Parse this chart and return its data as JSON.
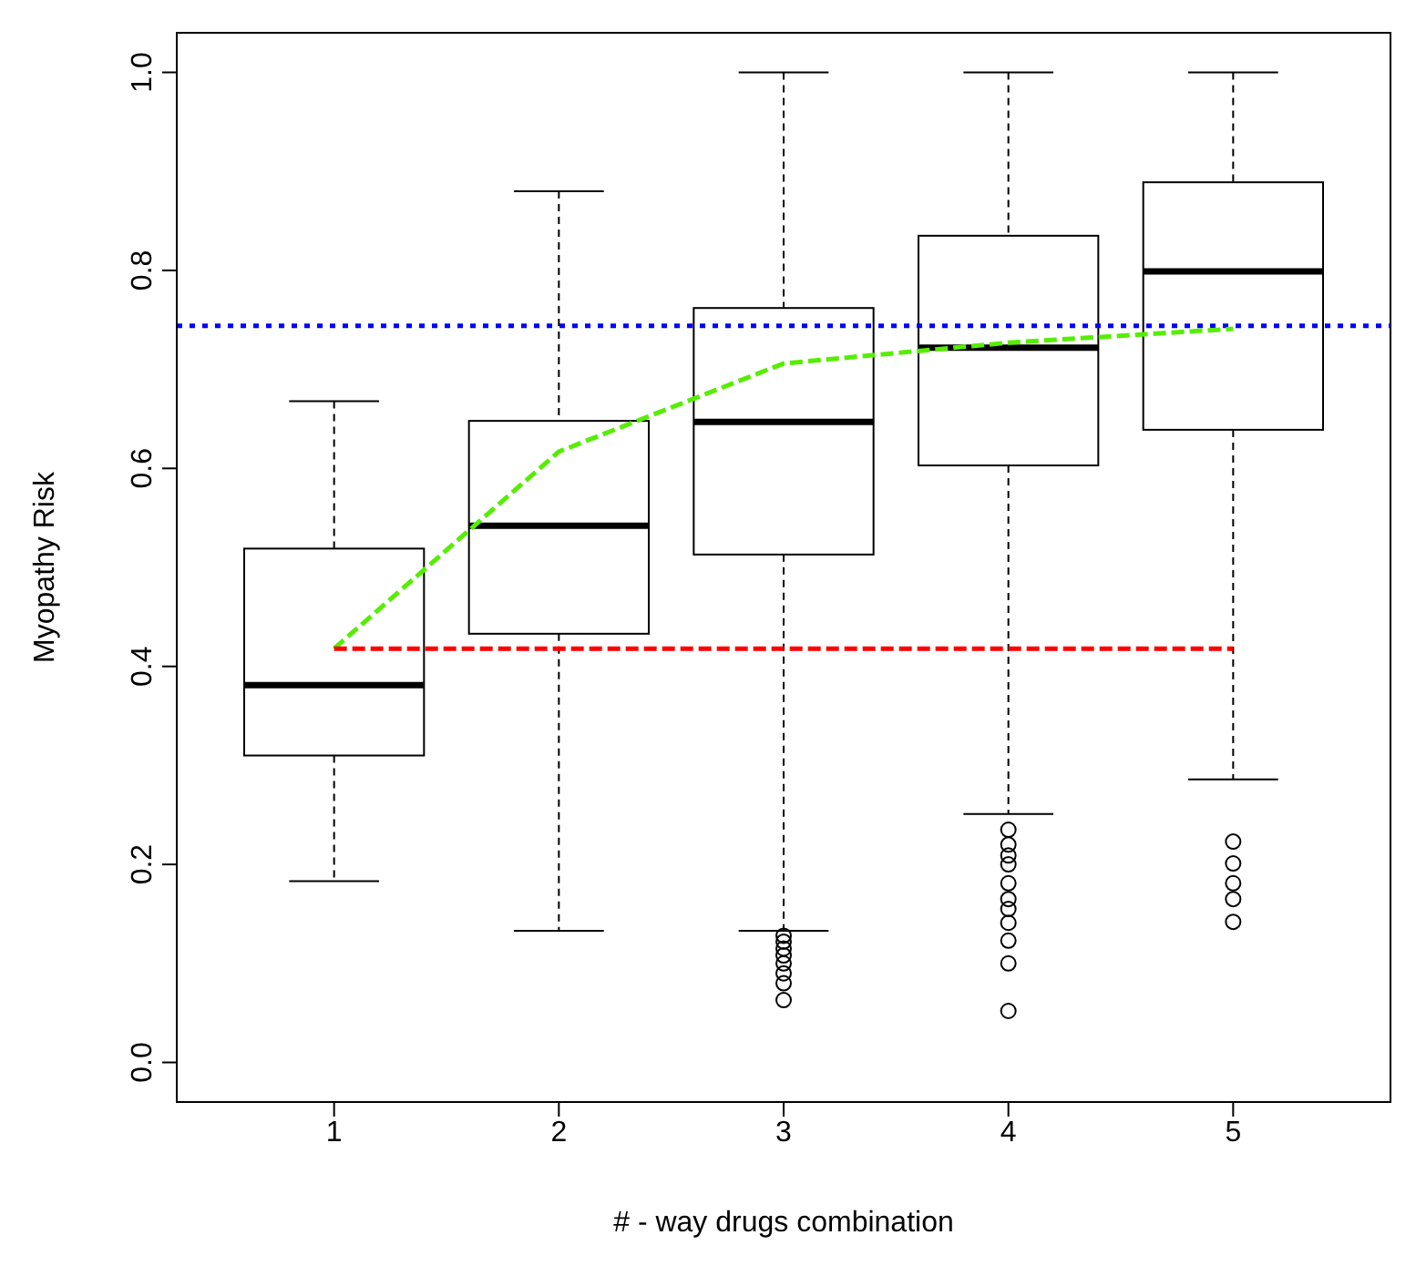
{
  "chart_data": {
    "type": "box",
    "xlabel": "# - way drugs combination",
    "ylabel": "Myopathy Risk",
    "categories": [
      "1",
      "2",
      "3",
      "4",
      "5"
    ],
    "boxes": [
      {
        "low": 0.183,
        "q1": 0.31,
        "median": 0.381,
        "q3": 0.519,
        "high": 0.668
      },
      {
        "low": 0.133,
        "q1": 0.433,
        "median": 0.542,
        "q3": 0.648,
        "high": 0.88
      },
      {
        "low": 0.133,
        "q1": 0.513,
        "median": 0.647,
        "q3": 0.762,
        "high": 1.0,
        "outliers": [
          0.128,
          0.122,
          0.115,
          0.108,
          0.1,
          0.09,
          0.08,
          0.063
        ]
      },
      {
        "low": 0.251,
        "q1": 0.603,
        "median": 0.722,
        "q3": 0.835,
        "high": 1.0,
        "outliers": [
          0.235,
          0.22,
          0.209,
          0.2,
          0.181,
          0.165,
          0.155,
          0.141,
          0.123,
          0.1,
          0.052
        ]
      },
      {
        "low": 0.286,
        "q1": 0.639,
        "median": 0.799,
        "q3": 0.889,
        "high": 1.0,
        "outliers": [
          0.223,
          0.201,
          0.181,
          0.165,
          0.142
        ]
      }
    ],
    "series": [
      {
        "type": "line",
        "color": "#55ee00",
        "line_style": "dashed",
        "marker": "none",
        "values": [
          0.418,
          0.617,
          0.706,
          0.727,
          0.741
        ]
      },
      {
        "type": "line",
        "color": "#ff0000",
        "line_style": "dashed",
        "marker": "none",
        "values": [
          0.418,
          0.418,
          0.418,
          0.418,
          0.418
        ]
      }
    ],
    "ref_lines": [
      {
        "axis": "y",
        "value": 0.744,
        "color": "#0000ff",
        "line_style": "dotted"
      }
    ],
    "ylim": [
      -0.04,
      1.04
    ],
    "yticks": [
      {
        "value": 0,
        "label": "0.0"
      },
      0.2,
      0.4,
      0.6,
      0.8,
      {
        "value": 1,
        "label": "1.0"
      }
    ]
  }
}
